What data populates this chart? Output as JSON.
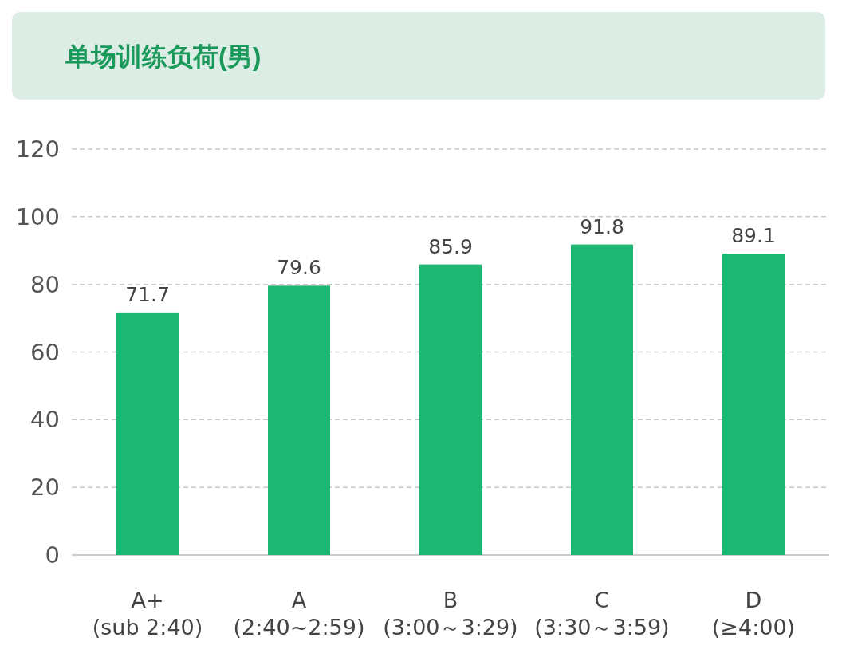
{
  "chart_data": {
    "type": "bar",
    "title": "单场训练负荷(男)",
    "categories": [
      "A+\n(sub 2:40)",
      "A\n(2:40~2:59)",
      "B\n(3:00～3:29)",
      "C\n(3:30～3:59)",
      "D\n(≥4:00)"
    ],
    "values": [
      71.7,
      79.6,
      85.9,
      91.8,
      89.1
    ],
    "color": "#1bb773",
    "ylim": [
      0,
      120
    ],
    "yticks": [
      0,
      20,
      40,
      60,
      80,
      100,
      120
    ],
    "grid": "y",
    "data_labels": true
  }
}
